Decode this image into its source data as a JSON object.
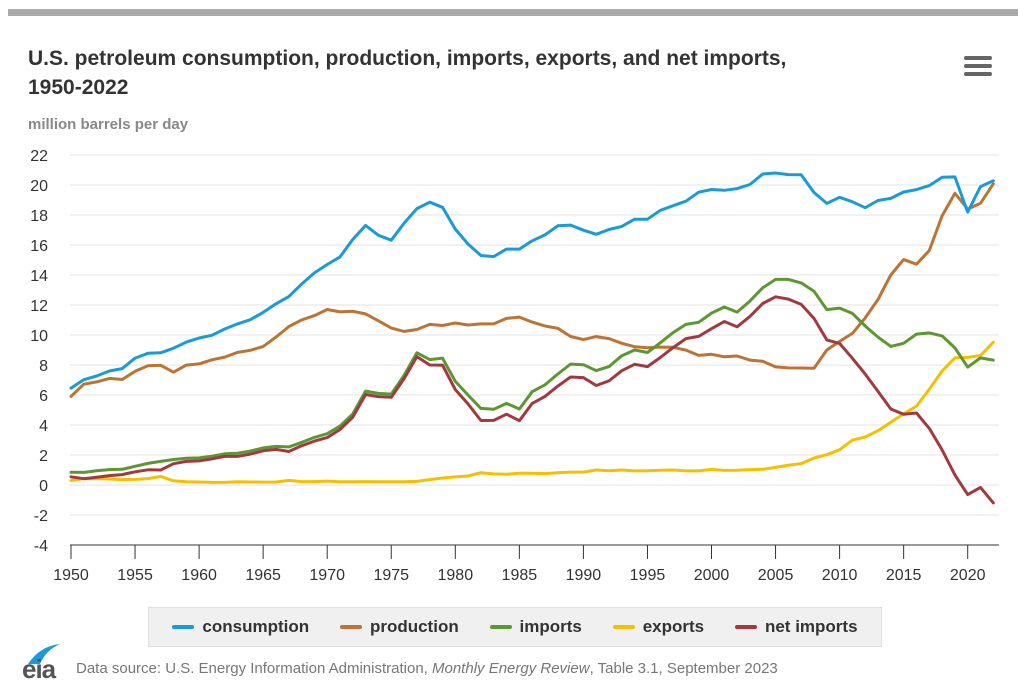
{
  "header": {
    "title_line1": "U.S. petroleum consumption, production, imports, exports, and net imports,",
    "title_line2": "1950-2022",
    "units": "million barrels per day",
    "menu_icon": "hamburger-menu-icon"
  },
  "footer": {
    "logo_text": "eia",
    "source_prefix": "Data source: U.S. Energy Information Administration, ",
    "source_italic": "Monthly Energy Review",
    "source_suffix": ", Table 3.1, September 2023"
  },
  "chart_data": {
    "type": "line",
    "title": "U.S. petroleum consumption, production, imports, exports, and net imports, 1950-2022",
    "ylabel": "million barrels per day",
    "xlabel": "",
    "ylim": [
      -4,
      22
    ],
    "xlim": [
      1950,
      2022
    ],
    "yticks": [
      "22",
      "20",
      "18",
      "16",
      "14",
      "12",
      "10",
      "8",
      "6",
      "4",
      "2",
      "0",
      "-2",
      "-4"
    ],
    "xticks": [
      "1950",
      "1955",
      "1960",
      "1965",
      "1970",
      "1975",
      "1980",
      "1985",
      "1990",
      "1995",
      "2000",
      "2005",
      "2010",
      "2015",
      "2020"
    ],
    "grid": true,
    "legend_position": "bottom",
    "x": [
      1950,
      1951,
      1952,
      1953,
      1954,
      1955,
      1956,
      1957,
      1958,
      1959,
      1960,
      1961,
      1962,
      1963,
      1964,
      1965,
      1966,
      1967,
      1968,
      1969,
      1970,
      1971,
      1972,
      1973,
      1974,
      1975,
      1976,
      1977,
      1978,
      1979,
      1980,
      1981,
      1982,
      1983,
      1984,
      1985,
      1986,
      1987,
      1988,
      1989,
      1990,
      1991,
      1992,
      1993,
      1994,
      1995,
      1996,
      1997,
      1998,
      1999,
      2000,
      2001,
      2002,
      2003,
      2004,
      2005,
      2006,
      2007,
      2008,
      2009,
      2010,
      2011,
      2012,
      2013,
      2014,
      2015,
      2016,
      2017,
      2018,
      2019,
      2020,
      2021,
      2022
    ],
    "series": [
      {
        "name": "consumption",
        "color": "#1a9ad6",
        "values": [
          6.46,
          7.02,
          7.27,
          7.6,
          7.76,
          8.46,
          8.78,
          8.81,
          9.12,
          9.53,
          9.8,
          9.98,
          10.4,
          10.74,
          11.02,
          11.51,
          12.08,
          12.56,
          13.39,
          14.14,
          14.7,
          15.21,
          16.37,
          17.31,
          16.65,
          16.32,
          17.46,
          18.43,
          18.85,
          18.51,
          17.06,
          16.06,
          15.3,
          15.23,
          15.73,
          15.73,
          16.28,
          16.67,
          17.28,
          17.33,
          16.99,
          16.71,
          17.03,
          17.24,
          17.72,
          17.72,
          18.31,
          18.62,
          18.92,
          19.52,
          19.7,
          19.65,
          19.76,
          20.03,
          20.73,
          20.8,
          20.69,
          20.68,
          19.5,
          18.77,
          19.18,
          18.88,
          18.49,
          18.97,
          19.11,
          19.53,
          19.69,
          19.96,
          20.51,
          20.54,
          18.19,
          19.89,
          20.28
        ]
      },
      {
        "name": "production",
        "color": "#bb7433",
        "values": [
          5.91,
          6.72,
          6.87,
          7.11,
          7.03,
          7.58,
          7.95,
          7.98,
          7.52,
          7.99,
          8.07,
          8.35,
          8.53,
          8.84,
          8.98,
          9.23,
          9.86,
          10.56,
          11.0,
          11.29,
          11.7,
          11.54,
          11.58,
          11.41,
          10.95,
          10.46,
          10.24,
          10.37,
          10.71,
          10.63,
          10.8,
          10.67,
          10.74,
          10.74,
          11.11,
          11.19,
          10.86,
          10.6,
          10.45,
          9.9,
          9.69,
          9.89,
          9.76,
          9.45,
          9.22,
          9.15,
          9.19,
          9.18,
          8.99,
          8.64,
          8.71,
          8.55,
          8.6,
          8.33,
          8.25,
          7.87,
          7.81,
          7.8,
          7.78,
          9.0,
          9.57,
          10.11,
          11.14,
          12.37,
          14.0,
          15.03,
          14.72,
          15.63,
          17.94,
          19.45,
          18.39,
          18.78,
          20.08
        ]
      },
      {
        "name": "imports",
        "color": "#5d9732",
        "values": [
          0.85,
          0.84,
          0.95,
          1.03,
          1.05,
          1.25,
          1.44,
          1.57,
          1.7,
          1.78,
          1.81,
          1.92,
          2.08,
          2.12,
          2.26,
          2.47,
          2.57,
          2.54,
          2.84,
          3.17,
          3.42,
          3.93,
          4.74,
          6.26,
          6.11,
          6.06,
          7.31,
          8.81,
          8.36,
          8.46,
          6.91,
          5.99,
          5.11,
          5.05,
          5.44,
          5.07,
          6.22,
          6.68,
          7.4,
          8.06,
          8.02,
          7.63,
          7.89,
          8.62,
          9.0,
          8.83,
          9.48,
          10.16,
          10.71,
          10.85,
          11.46,
          11.87,
          11.53,
          12.26,
          13.15,
          13.71,
          13.71,
          13.47,
          12.92,
          11.69,
          11.79,
          11.44,
          10.6,
          9.86,
          9.24,
          9.45,
          10.06,
          10.14,
          9.94,
          9.14,
          7.86,
          8.47,
          8.33
        ]
      },
      {
        "name": "exports",
        "color": "#f5c000",
        "values": [
          0.3,
          0.42,
          0.43,
          0.4,
          0.36,
          0.37,
          0.43,
          0.57,
          0.28,
          0.21,
          0.2,
          0.17,
          0.17,
          0.21,
          0.2,
          0.19,
          0.2,
          0.31,
          0.23,
          0.23,
          0.26,
          0.22,
          0.22,
          0.23,
          0.22,
          0.21,
          0.22,
          0.24,
          0.36,
          0.47,
          0.54,
          0.6,
          0.82,
          0.74,
          0.72,
          0.78,
          0.79,
          0.76,
          0.82,
          0.86,
          0.86,
          1.0,
          0.95,
          1.0,
          0.94,
          0.95,
          0.98,
          1.0,
          0.94,
          0.94,
          1.04,
          0.97,
          0.98,
          1.03,
          1.05,
          1.17,
          1.32,
          1.43,
          1.8,
          2.02,
          2.35,
          2.99,
          3.2,
          3.62,
          4.18,
          4.74,
          5.26,
          6.38,
          7.6,
          8.47,
          8.51,
          8.63,
          9.52
        ]
      },
      {
        "name": "net imports",
        "color": "#a03a3e",
        "values": [
          0.55,
          0.42,
          0.52,
          0.63,
          0.69,
          0.88,
          1.01,
          1.0,
          1.42,
          1.57,
          1.61,
          1.74,
          1.91,
          1.91,
          2.06,
          2.28,
          2.37,
          2.23,
          2.61,
          2.93,
          3.16,
          3.7,
          4.52,
          6.03,
          5.89,
          5.85,
          7.09,
          8.56,
          8.0,
          7.99,
          6.36,
          5.4,
          4.3,
          4.31,
          4.72,
          4.29,
          5.44,
          5.91,
          6.59,
          7.2,
          7.16,
          6.63,
          6.94,
          7.62,
          8.05,
          7.89,
          8.5,
          9.16,
          9.76,
          9.91,
          10.42,
          10.9,
          10.55,
          11.24,
          12.1,
          12.55,
          12.39,
          12.04,
          11.11,
          9.67,
          9.44,
          8.45,
          7.39,
          6.24,
          5.07,
          4.71,
          4.8,
          3.77,
          2.34,
          0.67,
          -0.64,
          -0.16,
          -1.19
        ]
      }
    ]
  }
}
